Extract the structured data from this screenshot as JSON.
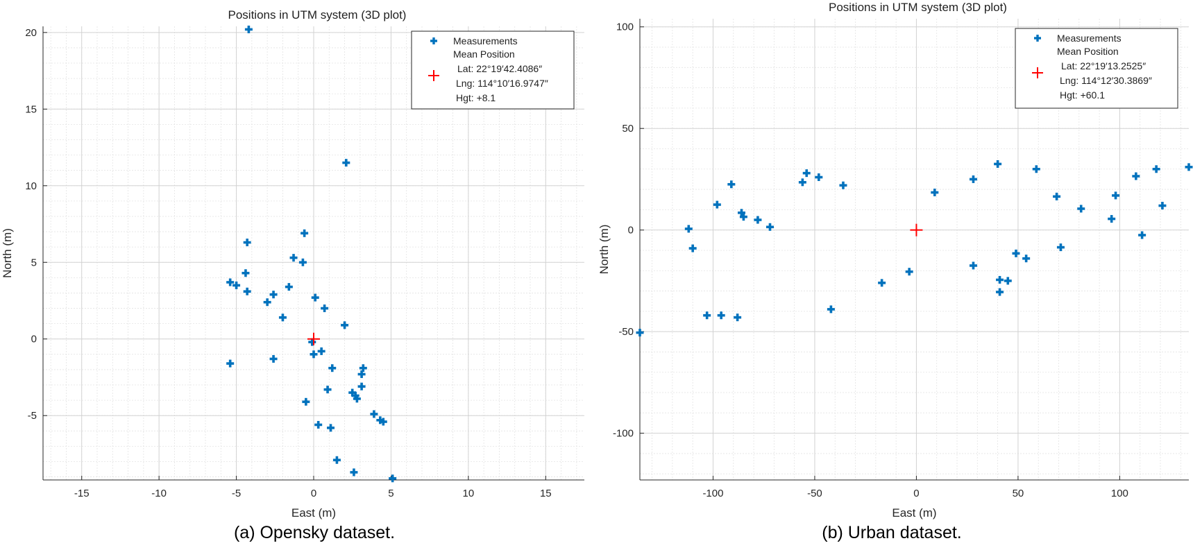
{
  "chart_data": [
    {
      "type": "scatter",
      "title": "Positions in UTM system (3D plot)",
      "caption": "(a) Opensky dataset.",
      "xlabel": "East (m)",
      "ylabel": "North (m)",
      "xlim": [
        -17.5,
        17.5
      ],
      "ylim": [
        -9.2,
        20.4
      ],
      "xticks": [
        -15,
        -10,
        -5,
        0,
        5,
        10,
        15
      ],
      "yticks": [
        -5,
        0,
        5,
        10,
        15,
        20
      ],
      "xtick_labels": [
        "-15",
        "-10",
        "-5",
        "0",
        "5",
        "10",
        "15"
      ],
      "ytick_labels": [
        "-5",
        "0",
        "5",
        "10",
        "15",
        "20"
      ],
      "grid": true,
      "legend_position": "top-right",
      "legend": {
        "measurements": "Measurements",
        "mean_header": "Mean Position",
        "lat": "Lat: 22°19′42.4086″",
        "lng": "Lng: 114°10′16.9747″",
        "hgt": "Hgt: +8.1"
      },
      "colors": {
        "measurements": "#0072bd",
        "mean": "#ff0000"
      },
      "mean": [
        0,
        0
      ],
      "series": [
        {
          "name": "Measurements",
          "points": [
            [
              -4.2,
              20.2
            ],
            [
              2.1,
              11.5
            ],
            [
              -0.6,
              6.9
            ],
            [
              -4.3,
              6.3
            ],
            [
              -1.3,
              5.3
            ],
            [
              -0.7,
              5.0
            ],
            [
              -4.4,
              4.3
            ],
            [
              -5.4,
              3.7
            ],
            [
              -5.0,
              3.5
            ],
            [
              -1.6,
              3.4
            ],
            [
              -4.3,
              3.1
            ],
            [
              -2.6,
              2.9
            ],
            [
              0.1,
              2.7
            ],
            [
              -3.0,
              2.4
            ],
            [
              0.7,
              2.0
            ],
            [
              -2.0,
              1.4
            ],
            [
              2.0,
              0.9
            ],
            [
              -0.1,
              -0.2
            ],
            [
              0.5,
              -0.8
            ],
            [
              0.0,
              -1.0
            ],
            [
              -2.6,
              -1.3
            ],
            [
              -5.4,
              -1.6
            ],
            [
              3.2,
              -1.9
            ],
            [
              1.2,
              -1.9
            ],
            [
              3.1,
              -2.3
            ],
            [
              3.1,
              -3.1
            ],
            [
              0.9,
              -3.3
            ],
            [
              2.5,
              -3.5
            ],
            [
              2.7,
              -3.7
            ],
            [
              2.8,
              -3.9
            ],
            [
              -0.5,
              -4.1
            ],
            [
              3.9,
              -4.9
            ],
            [
              4.3,
              -5.3
            ],
            [
              4.5,
              -5.4
            ],
            [
              0.3,
              -5.6
            ],
            [
              1.1,
              -5.8
            ],
            [
              1.5,
              -7.9
            ],
            [
              2.6,
              -8.7
            ],
            [
              5.1,
              -9.1
            ]
          ]
        }
      ]
    },
    {
      "type": "scatter",
      "title": "Positions in UTM system (3D plot)",
      "caption": "(b) Urban dataset.",
      "xlabel": "East (m)",
      "ylabel": "North (m)",
      "xlim": [
        -136,
        134
      ],
      "ylim": [
        -123,
        104
      ],
      "xticks": [
        -100,
        -50,
        0,
        50,
        100
      ],
      "yticks": [
        -100,
        -50,
        0,
        50,
        100
      ],
      "xtick_labels": [
        "-100",
        "-50",
        "0",
        "50",
        "100"
      ],
      "ytick_labels": [
        "-100",
        "-50",
        "0",
        "50",
        "100"
      ],
      "grid": true,
      "legend_position": "top-right",
      "legend": {
        "measurements": "Measurements",
        "mean_header": "Mean Position",
        "lat": "Lat: 22°19′13.2525″",
        "lng": "Lng: 114°12′30.3869″",
        "hgt": "Hgt: +60.1"
      },
      "colors": {
        "measurements": "#0072bd",
        "mean": "#ff0000"
      },
      "mean": [
        0,
        0
      ],
      "series": [
        {
          "name": "Measurements",
          "points": [
            [
              -136,
              -50.5
            ],
            [
              -112,
              0.6
            ],
            [
              -110,
              -9
            ],
            [
              -103,
              -42
            ],
            [
              -98,
              12.5
            ],
            [
              -96,
              -42
            ],
            [
              -91,
              22.5
            ],
            [
              -88,
              -43
            ],
            [
              -86,
              8.5
            ],
            [
              -85,
              6.5
            ],
            [
              -78,
              5
            ],
            [
              -72,
              1.5
            ],
            [
              -56,
              23.5
            ],
            [
              -54,
              28
            ],
            [
              -48,
              26
            ],
            [
              -42,
              -39
            ],
            [
              -36,
              22
            ],
            [
              -17,
              -26
            ],
            [
              -3.5,
              -20.5
            ],
            [
              9,
              18.5
            ],
            [
              28,
              -17.5
            ],
            [
              28,
              25
            ],
            [
              40,
              32.5
            ],
            [
              41,
              -24.5
            ],
            [
              41,
              -30.5
            ],
            [
              45,
              -25
            ],
            [
              49,
              -11.5
            ],
            [
              54,
              -14
            ],
            [
              59,
              30
            ],
            [
              69,
              16.5
            ],
            [
              71,
              -8.5
            ],
            [
              81,
              10.5
            ],
            [
              96,
              5.5
            ],
            [
              98,
              17
            ],
            [
              108,
              26.5
            ],
            [
              111,
              -2.5
            ],
            [
              118,
              30
            ],
            [
              121,
              12
            ],
            [
              134,
              31
            ]
          ]
        }
      ]
    }
  ]
}
